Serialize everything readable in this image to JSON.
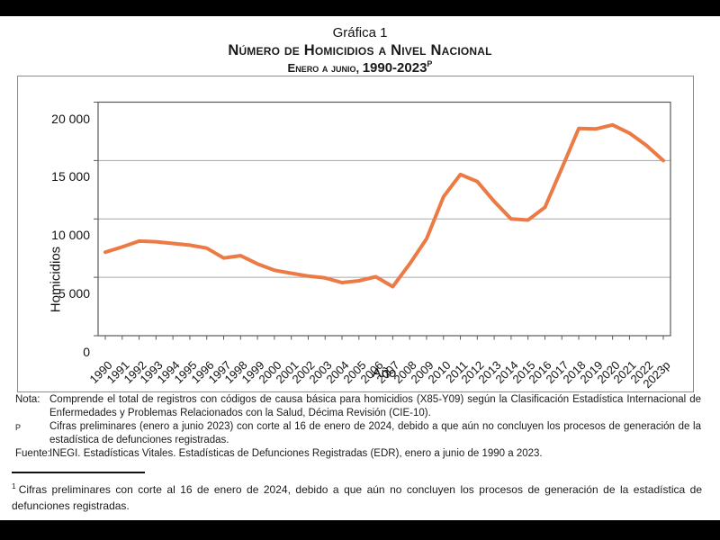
{
  "header": {
    "pretitle": "Gráfica 1",
    "title": "Número de Homicidios a Nivel Nacional",
    "subtitle_prefix": "Enero a junio, ",
    "subtitle_range": "1990-2023",
    "subtitle_superscript": "P"
  },
  "chart_data": {
    "type": "line",
    "title": "Número de Homicidios a Nivel Nacional, enero a junio, 1990-2023p",
    "xlabel": "Año",
    "ylabel": "Homicidios",
    "ylim": [
      0,
      20000
    ],
    "y_tick_labels": [
      "0",
      "5 000",
      "10 000",
      "15 000",
      "20 000"
    ],
    "grid": true,
    "legend": false,
    "line_color": "#EC7A45",
    "categories": [
      "1990",
      "1991",
      "1992",
      "1993",
      "1994",
      "1995",
      "1996",
      "1997",
      "1998",
      "1999",
      "2000",
      "2001",
      "2002",
      "2003",
      "2004",
      "2005",
      "2006",
      "2007",
      "2008",
      "2009",
      "2010",
      "2011",
      "2012",
      "2013",
      "2014",
      "2015",
      "2016",
      "2017",
      "2018",
      "2019",
      "2020",
      "2021",
      "2022",
      "2023p"
    ],
    "values": [
      7150,
      7600,
      8100,
      8050,
      7900,
      7750,
      7500,
      6650,
      6850,
      6150,
      5600,
      5350,
      5100,
      4950,
      4550,
      4700,
      5050,
      4200,
      6150,
      8300,
      11900,
      13800,
      13200,
      11500,
      10000,
      9900,
      11000,
      14350,
      17750,
      17700,
      18050,
      17350,
      16300,
      15000
    ]
  },
  "notes": {
    "nota_label": "Nota:",
    "nota_text": "Comprende el total de registros con códigos de causa básica para homicidios (X85-Y09) según la Clasificación Estadística Internacional de Enfermedades y Problemas Relacionados con la Salud, Décima Revisión (CIE-10).",
    "p_label": "P",
    "p_text": "Cifras preliminares (enero a junio 2023) con corte al 16 de enero de 2024, debido a que aún no concluyen los procesos de generación de la estadística de defunciones registradas.",
    "fuente_label": "Fuente:",
    "fuente_text": "INEGI. Estadísticas Vitales. Estadísticas de Defunciones Registradas (EDR), enero a junio de 1990 a 2023."
  },
  "footnote": {
    "marker": "1",
    "text": "Cifras preliminares con corte al 16 de enero de 2024, debido a que aún no concluyen los procesos de generación de la estadística de defunciones registradas."
  }
}
